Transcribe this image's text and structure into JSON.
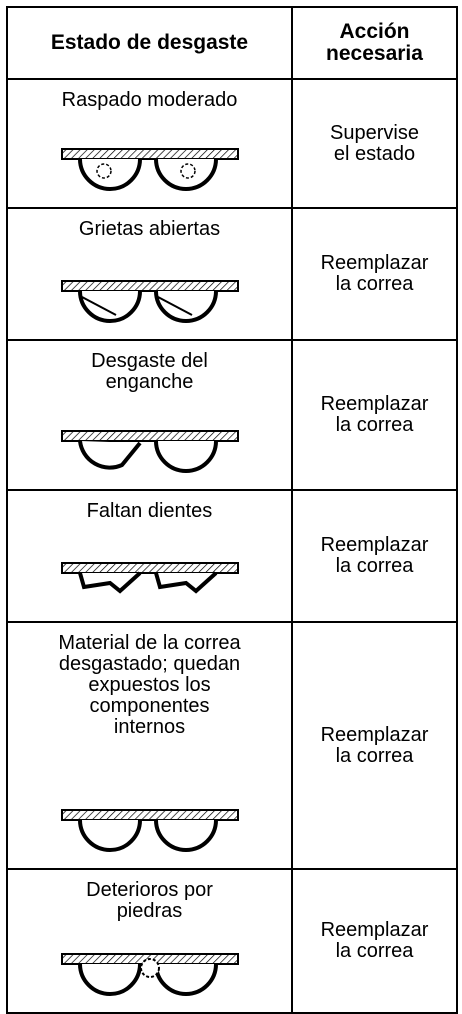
{
  "table": {
    "header": [
      "Estado de desgaste",
      [
        "Acción",
        "necesaria"
      ]
    ],
    "rows": [
      {
        "condition": [
          "Raspado moderado"
        ],
        "action": [
          "Supervise",
          "el estado"
        ]
      },
      {
        "condition": [
          "Grietas abiertas"
        ],
        "action": [
          "Reemplazar",
          "la correa"
        ]
      },
      {
        "condition": [
          "Desgaste del",
          "enganche"
        ],
        "action": [
          "Reemplazar",
          "la correa"
        ]
      },
      {
        "condition": [
          "Faltan dientes"
        ],
        "action": [
          "Reemplazar",
          "la correa"
        ]
      },
      {
        "condition": [
          "Material de la correa",
          "desgastado; quedan",
          "expuestos los",
          "componentes",
          "internos"
        ],
        "action": [
          "Reemplazar",
          "la correa"
        ]
      },
      {
        "condition": [
          "Deterioros por",
          "piedras"
        ],
        "action": [
          "Reemplazar",
          "la correa"
        ]
      }
    ]
  }
}
